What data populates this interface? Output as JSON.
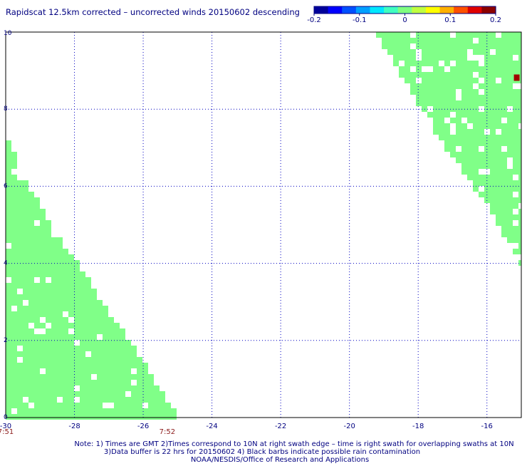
{
  "title": "Rapidscat 12.5km corrected – uncorrected winds 20150602 descending",
  "colorbar": {
    "colors": [
      "#00009a",
      "#0000ff",
      "#0050ff",
      "#00a0ff",
      "#00e8ff",
      "#40ffc0",
      "#80ff80",
      "#c0ff40",
      "#ffff00",
      "#ffb000",
      "#ff5000",
      "#e00000",
      "#8c0000"
    ],
    "tick_labels": [
      "-0.2",
      "-0.1",
      "0",
      "0.1",
      "0.2"
    ],
    "tick_values": [
      -0.2,
      -0.1,
      0,
      0.1,
      0.2
    ]
  },
  "map": {
    "lon_range": [
      -30,
      -15
    ],
    "lat_range": [
      0,
      10
    ],
    "x_tick_values": [
      -30,
      -28,
      -26,
      -24,
      -22,
      -20,
      -18,
      -16
    ],
    "x_tick_labels": [
      "-30",
      "-28",
      "-26",
      "-24",
      "-22",
      "-20",
      "-18",
      "-16"
    ],
    "y_tick_values": [
      0,
      2,
      4,
      6,
      8,
      10
    ],
    "y_tick_labels": [
      "0",
      "2",
      "4",
      "6",
      "8",
      "10"
    ],
    "fill_color": "#80ff88",
    "outlier_color": "#a00000",
    "swath_left_edges": [
      [
        7.5,
        -30.0
      ],
      [
        7.2,
        -30.0
      ],
      [
        7.0,
        -29.8
      ],
      [
        6.5,
        -29.6
      ],
      [
        6.0,
        -29.3
      ],
      [
        5.5,
        -29.0
      ],
      [
        5.0,
        -28.7
      ],
      [
        4.5,
        -28.3
      ],
      [
        4.0,
        -27.9
      ],
      [
        3.5,
        -27.5
      ],
      [
        3.0,
        -27.2
      ],
      [
        2.5,
        -26.8
      ],
      [
        2.0,
        -26.4
      ],
      [
        1.5,
        -26.0
      ],
      [
        1.0,
        -25.7
      ],
      [
        0.5,
        -25.3
      ],
      [
        0.0,
        -25.0
      ]
    ],
    "swath_right_edges": [
      [
        10.0,
        -19.2
      ],
      [
        9.5,
        -18.9
      ],
      [
        9.0,
        -18.6
      ],
      [
        8.5,
        -18.2
      ],
      [
        8.0,
        -17.9
      ],
      [
        7.5,
        -17.6
      ],
      [
        7.0,
        -17.2
      ],
      [
        6.5,
        -16.8
      ],
      [
        6.0,
        -16.4
      ],
      [
        5.5,
        -16.0
      ],
      [
        5.0,
        -15.7
      ],
      [
        4.5,
        -15.3
      ],
      [
        4.0,
        -15.0
      ]
    ],
    "time_labels": [
      {
        "lon": -30,
        "text": "7:51"
      },
      {
        "lon": -25.3,
        "text": "7:52"
      }
    ]
  },
  "notes": [
    "Note: 1) Times are GMT 2)Times correspond to 10N at right swath edge – time is right swath for overlapping swaths at 10N",
    "3)Data buffer is 22 hrs for 20150602 4) Black barbs indicate possible rain contamination",
    "NOAA/NESDIS/Office of Research and Applications"
  ]
}
